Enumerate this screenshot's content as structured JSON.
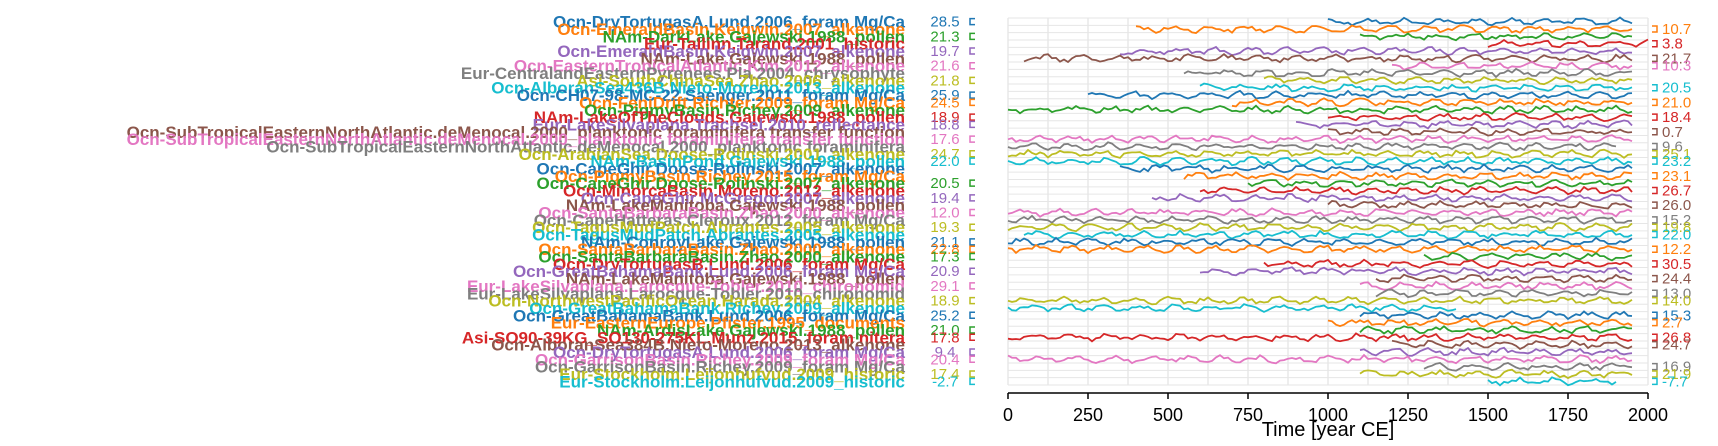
{
  "chart_data": {
    "type": "line",
    "title": "",
    "xlabel": "Time [year CE]",
    "ylabel": "",
    "xlim": [
      0,
      2000
    ],
    "xticks": [
      0,
      250,
      500,
      750,
      1000,
      1250,
      1500,
      1750,
      2000
    ],
    "grid": true,
    "layout": "stacked-series",
    "series": [
      {
        "name": "Ocn-DryTortugasA.Lund.2006_foram Mg/Ca",
        "color": "#1f77b4",
        "x": [
          1000,
          1950
        ],
        "left": "28.5",
        "right": ""
      },
      {
        "name": "Ocn-EmeraldBasin.Keigwin.2007_alkenone",
        "color": "#ff7f0e",
        "x": [
          400,
          1950
        ],
        "left": "",
        "right": "10.7"
      },
      {
        "name": "NAm-DarkLake.Gajewski.1988_pollen",
        "color": "#2ca02c",
        "x": [
          1100,
          1950
        ],
        "left": "21.3",
        "right": ""
      },
      {
        "name": "Eur-Tallinn.Tarand.2001_historic",
        "color": "#d62728",
        "x": [
          1500,
          2000
        ],
        "left": "",
        "right": "3.8"
      },
      {
        "name": "Ocn-EmeraldBasin.Keigwin.2007_alkenone",
        "color": "#9467bd",
        "x": [
          350,
          1950
        ],
        "left": "19.7",
        "right": ""
      },
      {
        "name": "NAm-Lake.Gajewski.1988_pollen",
        "color": "#8c564b",
        "x": [
          50,
          1950
        ],
        "left": "",
        "right": "21.7"
      },
      {
        "name": "Ocn-EasternTropicalAtlantic.Kim.2012_alkenone",
        "color": "#e377c2",
        "x": [
          1200,
          1950
        ],
        "left": "21.6",
        "right": "10.3"
      },
      {
        "name": "Eur-CentralandEasternPyrenees.Pla.2004_chrysophyte",
        "color": "#7f7f7f",
        "x": [
          550,
          1950
        ],
        "left": "",
        "right": ""
      },
      {
        "name": "Asi-SouthChinaSea.Zhao.2006_alkenone",
        "color": "#bcbd22",
        "x": [
          800,
          1950
        ],
        "left": "21.8",
        "right": ""
      },
      {
        "name": "Ocn-AlboranSea436B.Nieto-Moreno.2013_alkenone",
        "color": "#17becf",
        "x": [
          600,
          1950
        ],
        "left": "",
        "right": "20.5"
      },
      {
        "name": "Ocn-CH07-98-MC-22.Saenger.2011_foram Mg/Ca",
        "color": "#1f77b4",
        "x": [
          250,
          1950
        ],
        "left": "25.9",
        "right": ""
      },
      {
        "name": "Ocn-FeniDrift.Richter.2009_foram Mg/Ca",
        "color": "#ff7f0e",
        "x": [
          700,
          1950
        ],
        "left": "24.5",
        "right": "21.0"
      },
      {
        "name": "Ocn-PigmyBasin.Richey.2009_alkenone",
        "color": "#2ca02c",
        "x": [
          0,
          1950
        ],
        "left": "",
        "right": ""
      },
      {
        "name": "NAm-LakeOfTheClouds.Gajewski.1988_pollen",
        "color": "#d62728",
        "x": [
          1000,
          1950
        ],
        "left": "18.9",
        "right": "18.4"
      },
      {
        "name": "Eur-LakeSilvaplana.Trachsel.2010_reflectance",
        "color": "#9467bd",
        "x": [
          900,
          1950
        ],
        "left": "18.8",
        "right": ""
      },
      {
        "name": "Ocn-SubTropicalEasternNorthAtlantic.deMenocal.2000_planktonic foraminifera transfer function",
        "color": "#8c564b",
        "x": [
          1000,
          1950
        ],
        "left": "",
        "right": "0.7"
      },
      {
        "name": "Ocn-SubTropicalEasternNorthAtlantic.deMenocal.2000_planktonic foraminifera transfer function",
        "color": "#e377c2",
        "x": [
          0,
          1950
        ],
        "left": "17.6",
        "right": ""
      },
      {
        "name": "Ocn-SubTropicalEasternNorthAtlantic.deMenocal.2000_planktonic foraminifera",
        "color": "#7f7f7f",
        "x": [
          0,
          1900
        ],
        "left": "",
        "right": "9.6"
      },
      {
        "name": "Ocn-ArabianSea.Doose-Rolinski.2001_alkenone",
        "color": "#bcbd22",
        "x": [
          0,
          1950
        ],
        "left": "24.7",
        "right": "25.1"
      },
      {
        "name": "NAm-BasinPond.Gajewski.1988_pollen",
        "color": "#17becf",
        "x": [
          0,
          1950
        ],
        "left": "22.0",
        "right": "23.2"
      },
      {
        "name": "Ocn-CapeGhir.Doose-Rolinski.2007_alkenone",
        "color": "#1f77b4",
        "x": [
          350,
          1950
        ],
        "left": "",
        "right": ""
      },
      {
        "name": "Ocn-PigmyBasin.Richey.2015_foram Mg/Ca",
        "color": "#ff7f0e",
        "x": [
          550,
          1950
        ],
        "left": "",
        "right": "23.1"
      },
      {
        "name": "Ocn-CapeGhir.Doose-Rolinski.2007_alkenone",
        "color": "#2ca02c",
        "x": [
          750,
          1950
        ],
        "left": "20.5",
        "right": ""
      },
      {
        "name": "Ocn-MinorcaBasin.Moreno.2012_alkenone",
        "color": "#d62728",
        "x": [
          600,
          1950
        ],
        "left": "",
        "right": "26.7"
      },
      {
        "name": "Ocn-CapeGhir.McGregor.2007_alkenone",
        "color": "#9467bd",
        "x": [
          450,
          1950
        ],
        "left": "19.4",
        "right": ""
      },
      {
        "name": "NAm-LakeManitoba.Gajewski.1988_pollen",
        "color": "#8c564b",
        "x": [
          1000,
          1950
        ],
        "left": "",
        "right": "26.0"
      },
      {
        "name": "Ocn-SantaBarbaraBasin.Zhao.2000_alkenone",
        "color": "#e377c2",
        "x": [
          0,
          1950
        ],
        "left": "12.0",
        "right": ""
      },
      {
        "name": "Ocn-CapeHatteras.Cleroux.2012_foram Mg/Ca",
        "color": "#7f7f7f",
        "x": [
          0,
          1950
        ],
        "left": "",
        "right": "15.2"
      },
      {
        "name": "Ocn-TagusMudPatch.Abrantes.2005_alkenone",
        "color": "#bcbd22",
        "x": [
          0,
          1950
        ],
        "left": "19.3",
        "right": "19.8"
      },
      {
        "name": "Ocn-TagusMudPatch.Abrantes.2005_alkenone",
        "color": "#17becf",
        "x": [
          50,
          1950
        ],
        "left": "",
        "right": "22.0"
      },
      {
        "name": "NAm-ConroyLake.Gajewski.1988_pollen",
        "color": "#1f77b4",
        "x": [
          0,
          1950
        ],
        "left": "21.1",
        "right": ""
      },
      {
        "name": "Ocn-SantaBarbaraBasin.Zhao.2000_alkenone",
        "color": "#ff7f0e",
        "x": [
          0,
          1950
        ],
        "left": "22.8",
        "right": "12.2"
      },
      {
        "name": "Ocn-SantaBarbaraBasin.Zhao.2000_alkenone",
        "color": "#2ca02c",
        "x": [
          1300,
          1950
        ],
        "left": "17.3",
        "right": ""
      },
      {
        "name": "Ocn-DryTortugasB.Lund.2006_foram Mg/Ca",
        "color": "#d62728",
        "x": [
          800,
          1950
        ],
        "left": "",
        "right": "30.5"
      },
      {
        "name": "Ocn-GreatBahamaBank.Lund.2006_foram Mg/Ca",
        "color": "#9467bd",
        "x": [
          600,
          1950
        ],
        "left": "20.9",
        "right": ""
      },
      {
        "name": "NAm-LakeManitoba.Gajewski.1988_pollen",
        "color": "#8c564b",
        "x": [
          1150,
          1950
        ],
        "left": "",
        "right": "24.4"
      },
      {
        "name": "Eur-LakeSilvaplana.Larocque-Tobler.2010_chironomid",
        "color": "#e377c2",
        "x": [
          1100,
          1950
        ],
        "left": "29.1",
        "right": ""
      },
      {
        "name": "Eur-LakeSilvaplana.Larocque-Tobler.2010_chironomid",
        "color": "#7f7f7f",
        "x": [
          1150,
          1950
        ],
        "left": "",
        "right": "13.0"
      },
      {
        "name": "Ocn-NorthwestPacificOcean.Harada.2004_alkenone",
        "color": "#bcbd22",
        "x": [
          0,
          1950
        ],
        "left": "18.9",
        "right": "14.0"
      },
      {
        "name": "Ocn-GreatBahamaBank.Richey.2009_alkenone",
        "color": "#17becf",
        "x": [
          0,
          1400
        ],
        "left": "",
        "right": ""
      },
      {
        "name": "Ocn-GreatBahamaBank.Lund.2006_foram Mg/Ca",
        "color": "#1f77b4",
        "x": [
          1100,
          1950
        ],
        "left": "25.2",
        "right": "15.3"
      },
      {
        "name": "Eur-EasternEurope.Pfister.1995_documents",
        "color": "#ff7f0e",
        "x": [
          1000,
          1950
        ],
        "left": "",
        "right": "2.7"
      },
      {
        "name": "NAm-ArdisLake.Gajewski.1988_pollen",
        "color": "#2ca02c",
        "x": [
          1100,
          1950
        ],
        "left": "21.0",
        "right": ""
      },
      {
        "name": "Asi-SO90-39KG_SO130-275KL.Munz.2015_foram nitera",
        "color": "#d62728",
        "x": [
          0,
          1950
        ],
        "left": "17.8",
        "right": "26.8"
      },
      {
        "name": "Ocn-AlboranSea384B.Nieto-Moreno.2013_alkenone",
        "color": "#8c564b",
        "x": [
          1200,
          1950
        ],
        "left": "",
        "right": "24.7"
      },
      {
        "name": "Ocn-DryTortugasA.Lund.2006_foram Mg/Ca",
        "color": "#9467bd",
        "x": [
          1100,
          1950
        ],
        "left": "9.4",
        "right": ""
      },
      {
        "name": "Ocn-GarrisonBasin.Richey.2009_foram Mg/Ca",
        "color": "#e377c2",
        "x": [
          0,
          1950
        ],
        "left": "20.4",
        "right": ""
      },
      {
        "name": "Ocn-GarrisonBasin.Richey.2009_foram Mg/Ca",
        "color": "#7f7f7f",
        "x": [
          1300,
          1950
        ],
        "left": "",
        "right": "16.9"
      },
      {
        "name": "Eur-Stockholm.Leijonhufvud.2009_historic",
        "color": "#bcbd22",
        "x": [
          1100,
          1950
        ],
        "left": "17.4",
        "right": "21.9"
      },
      {
        "name": "Eur-Stockholm.Leijonhufvud.2009_historic",
        "color": "#17becf",
        "x": [
          1500,
          1900
        ],
        "left": "-2.7",
        "right": "-7.7"
      }
    ]
  }
}
